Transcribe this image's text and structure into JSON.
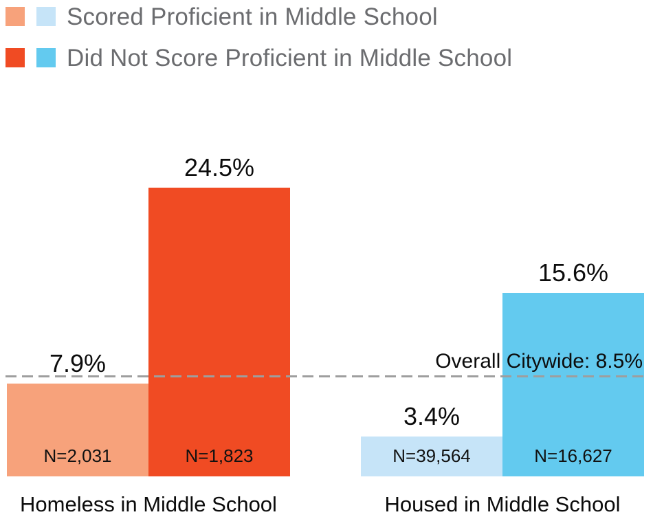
{
  "legend": {
    "rows": [
      {
        "label": "Scored Proficient in Middle School",
        "swatches": [
          "#F7A27B",
          "#C6E4F8"
        ]
      },
      {
        "label": "Did Not Score Proficient in Middle School",
        "swatches": [
          "#F04B23",
          "#63CAEF"
        ]
      }
    ]
  },
  "chart_data": {
    "type": "bar",
    "categories": [
      "Homeless in Middle School",
      "Housed in Middle School"
    ],
    "series": [
      {
        "name": "Scored Proficient in Middle School",
        "values": [
          7.9,
          3.4
        ],
        "sample_sizes": [
          "N=2,031",
          "N=39,564"
        ]
      },
      {
        "name": "Did Not Score Proficient in Middle School",
        "values": [
          24.5,
          15.6
        ],
        "sample_sizes": [
          "N=1,823",
          "N=16,627"
        ]
      }
    ],
    "bars": [
      {
        "group": "Homeless in Middle School",
        "series": "Scored Proficient in Middle School",
        "value": 7.9,
        "pct_label": "7.9%",
        "n_label": "N=2,031",
        "color": "#F7A27B"
      },
      {
        "group": "Homeless in Middle School",
        "series": "Did Not Score Proficient in Middle School",
        "value": 24.5,
        "pct_label": "24.5%",
        "n_label": "N=1,823",
        "color": "#F04B23"
      },
      {
        "group": "Housed in Middle School",
        "series": "Scored Proficient in Middle School",
        "value": 3.4,
        "pct_label": "3.4%",
        "n_label": "N=39,564",
        "color": "#C6E4F8"
      },
      {
        "group": "Housed in Middle School",
        "series": "Did Not Score Proficient in Middle School",
        "value": 15.6,
        "pct_label": "15.6%",
        "n_label": "N=16,627",
        "color": "#63CAEF"
      }
    ],
    "reference_line": {
      "value": 8.5,
      "label": "Overall Citywide: 8.5%",
      "style": "dashed",
      "color": "#9E9E9E"
    },
    "ylim": [
      0,
      24.5
    ],
    "grid": false,
    "legend_position": "top-left",
    "unit": "percent"
  }
}
